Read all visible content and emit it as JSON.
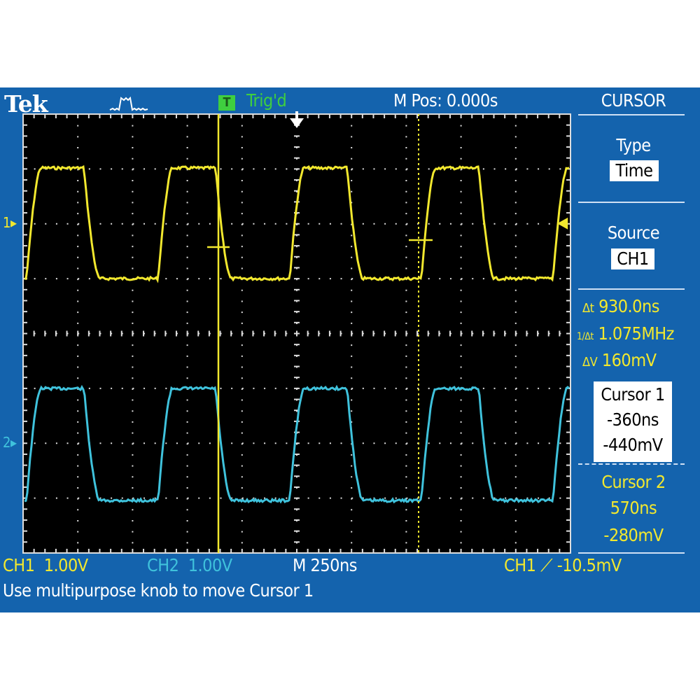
{
  "header": {
    "brand": "Tek",
    "acquisition_icon": "acquisition-waveform-icon",
    "trigger_status_icon": "T",
    "trigger_status": "Trig'd",
    "horizontal_position": "M Pos: 0.000s"
  },
  "side_menu": {
    "title": "CURSOR",
    "type_label": "Type",
    "type_value": "Time",
    "source_label": "Source",
    "source_value": "CH1",
    "delta_t": "930.0ns",
    "inverse_delta_t": "1.075MHz",
    "delta_v": "160mV",
    "delta_t_icon": "Δt",
    "inverse_delta_t_icon": "1/Δt",
    "delta_v_icon": "ΔV",
    "cursor1": {
      "label": "Cursor 1",
      "time": "-360ns",
      "voltage": "-440mV"
    },
    "cursor2": {
      "label": "Cursor 2",
      "time": "570ns",
      "voltage": "-280mV"
    }
  },
  "status_bar": {
    "ch1_label": "CH1",
    "ch1_scale": "1.00V",
    "ch2_label": "CH2",
    "ch2_scale": "1.00V",
    "timebase": "M 250ns",
    "trigger_source": "CH1",
    "trigger_slope_icon": "rising-edge",
    "trigger_level": "-10.5mV",
    "message": "Use multipurpose knob to move Cursor 1"
  },
  "display": {
    "horizontal_divisions": 10,
    "vertical_divisions": 8,
    "ch1_marker": "1",
    "ch2_marker": "2",
    "colors": {
      "ch1": "#f2e82e",
      "ch2": "#3fc2dc",
      "background": "#1463ad",
      "grid": "#000000"
    }
  }
}
